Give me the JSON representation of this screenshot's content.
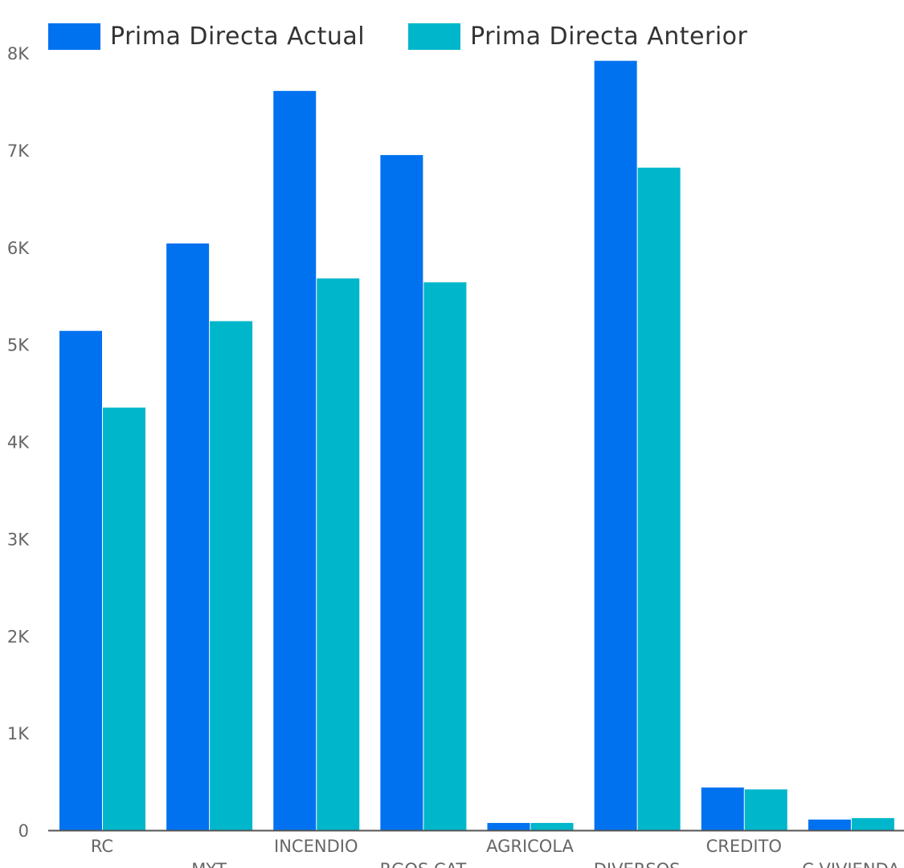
{
  "chart_data": {
    "type": "bar",
    "categories": [
      "RC",
      "MYT",
      "INCENDIO",
      "RGOS CAT",
      "AGRICOLA",
      "DIVERSOS",
      "CREDITO",
      "C.VIVIENDA"
    ],
    "series": [
      {
        "name": "Prima Directa Actual",
        "values": [
          5140,
          6040,
          7610,
          6950,
          75,
          7920,
          440,
          110
        ],
        "color": "#0072F0"
      },
      {
        "name": "Prima Directa Anterior",
        "values": [
          4350,
          5240,
          5680,
          5640,
          75,
          6820,
          420,
          125
        ],
        "color": "#00B6CB"
      }
    ],
    "ylim": [
      0,
      8000
    ],
    "yticks": [
      0,
      1000,
      2000,
      3000,
      4000,
      5000,
      6000,
      7000,
      8000
    ],
    "ytick_labels": [
      "0",
      "1K",
      "2K",
      "3K",
      "4K",
      "5K",
      "6K",
      "7K",
      "8K"
    ],
    "legend_position": "top-left",
    "grid": false,
    "title": "",
    "xlabel": "",
    "ylabel": ""
  },
  "colors": {
    "axis": "#555555",
    "tick_text": "#666666"
  }
}
